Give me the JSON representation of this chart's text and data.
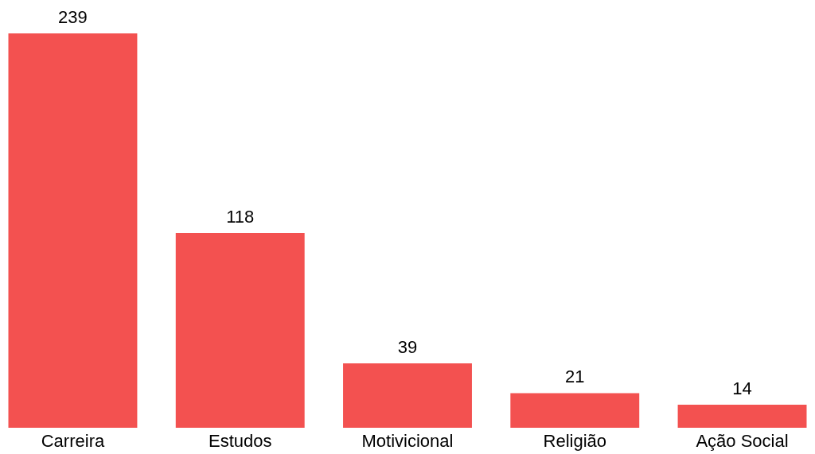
{
  "chart_data": {
    "type": "bar",
    "categories": [
      "Carreira",
      "Estudos",
      "Motivicional",
      "Religião",
      "Ação Social"
    ],
    "values": [
      239,
      118,
      39,
      21,
      14
    ],
    "color": "#f35150",
    "data_labels": true
  }
}
